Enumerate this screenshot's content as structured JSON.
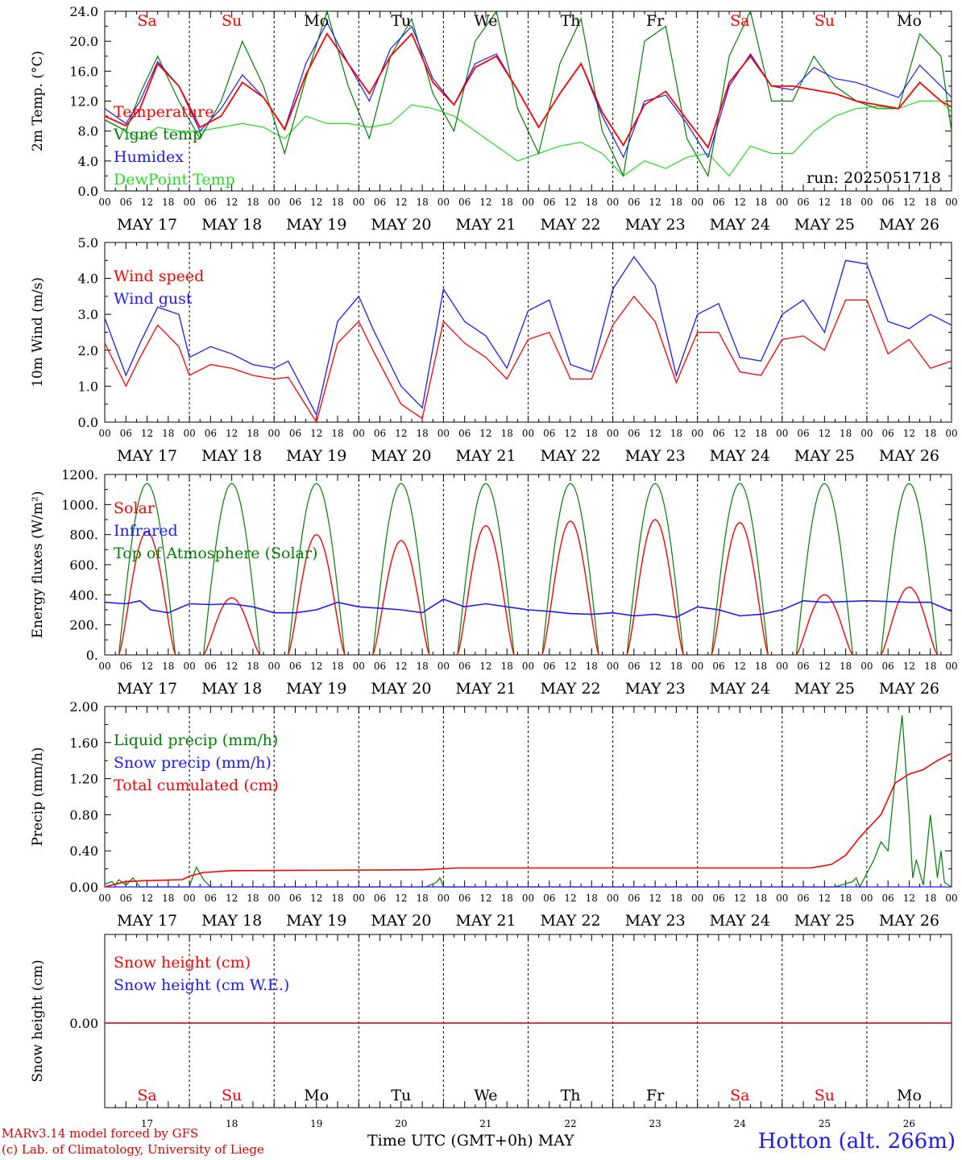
{
  "footer": {
    "credit_line1": "MARv3.14 model forced by GFS",
    "credit_line2": "(c) Lab. of Climatology, University of Liege",
    "station": "Hotton (alt. 266m)",
    "x_title": "Time UTC (GMT+0h)",
    "x_month": "MAY"
  },
  "colors": {
    "red": "#ff0000",
    "green": "#008000",
    "blue": "#1a1aff",
    "light_green": "#22dd22",
    "black": "#000000"
  },
  "chart_data": [
    {
      "type": "line",
      "ylabel": "2m Temp. (°C)",
      "ylim": [
        0,
        24
      ],
      "yticks": [
        "0.0",
        "4.0",
        "8.0",
        "12.0",
        "16.0",
        "20.0",
        "24.0"
      ],
      "xlim_hours": [
        0,
        240
      ],
      "annotation": "run: 2025051718",
      "day_names": [
        "Sa",
        "Su",
        "Mo",
        "Tu",
        "We",
        "Th",
        "Fr",
        "Sa",
        "Su",
        "Mo"
      ],
      "x": [
        0,
        6,
        10,
        15,
        21,
        27,
        33,
        39,
        45,
        51,
        57,
        63,
        69,
        75,
        81,
        87,
        93,
        99,
        105,
        111,
        117,
        123,
        129,
        135,
        141,
        147,
        153,
        159,
        165,
        171,
        177,
        183,
        189,
        195,
        201,
        207,
        213,
        219,
        225,
        231,
        237,
        240
      ],
      "series": [
        {
          "name": "Temperature",
          "color": "red",
          "values": [
            10,
            8.7,
            11,
            17,
            14,
            8.5,
            10,
            14.5,
            12.5,
            8.2,
            15.5,
            21,
            17,
            13,
            18,
            21,
            14.5,
            11.5,
            16.5,
            18,
            13.5,
            8.5,
            13,
            17,
            10.5,
            6.1,
            11.5,
            13.3,
            9.5,
            5.8,
            14.5,
            18,
            14,
            14,
            13.5,
            13,
            12,
            11.5,
            11,
            14.5,
            12,
            11.2
          ]
        },
        {
          "name": "Vigne temp",
          "color": "green",
          "values": [
            9.5,
            8,
            13,
            18,
            12,
            7,
            12,
            20,
            14,
            5,
            15,
            24,
            14,
            7,
            18,
            23,
            13,
            8,
            20,
            24,
            11,
            5,
            17,
            23,
            8,
            2,
            20,
            22,
            7,
            2,
            18,
            24,
            12,
            12,
            18,
            14,
            12,
            11,
            11,
            21,
            18,
            8
          ]
        },
        {
          "name": "Humidex",
          "color": "blue",
          "values": [
            11,
            9,
            12,
            17.3,
            14,
            8,
            11,
            15.5,
            12.5,
            8.3,
            17,
            22.5,
            17,
            12,
            19,
            22,
            15,
            11.5,
            17,
            18.3,
            13.5,
            8.5,
            13,
            17,
            10,
            4.5,
            12,
            12.8,
            9,
            4.5,
            14,
            18.3,
            14,
            13.5,
            16.5,
            15,
            14.5,
            13.5,
            12.5,
            16.8,
            14,
            12.5
          ]
        },
        {
          "name": "DewPoint Temp",
          "color": "light_green",
          "values": [
            9.5,
            8,
            7,
            8.5,
            8,
            8,
            8.5,
            9,
            8.5,
            7,
            10,
            9,
            9,
            8.5,
            9,
            11.5,
            11,
            10,
            8,
            6,
            4,
            5,
            6,
            6.5,
            5,
            2,
            4,
            3,
            4.5,
            5,
            2,
            6,
            5,
            5,
            8,
            10,
            11,
            11.3,
            11,
            12,
            12,
            10.5
          ]
        }
      ]
    },
    {
      "type": "line",
      "ylabel": "10m Wind (m/s)",
      "ylim": [
        0,
        5
      ],
      "yticks": [
        "0.0",
        "1.0",
        "2.0",
        "3.0",
        "4.0",
        "5.0"
      ],
      "xlim_hours": [
        0,
        240
      ],
      "x": [
        0,
        6,
        10,
        15,
        21,
        24,
        30,
        36,
        42,
        48,
        52,
        60,
        66,
        72,
        76,
        84,
        90,
        96,
        102,
        108,
        114,
        120,
        126,
        132,
        138,
        144,
        150,
        156,
        162,
        168,
        174,
        180,
        186,
        192,
        198,
        204,
        210,
        216,
        222,
        228,
        234,
        240
      ],
      "series": [
        {
          "name": "Wind speed",
          "color": "red",
          "values": [
            2.2,
            1.0,
            1.8,
            2.7,
            2.1,
            1.3,
            1.6,
            1.5,
            1.3,
            1.2,
            1.25,
            0.0,
            2.2,
            2.8,
            2.0,
            0.5,
            0.1,
            2.8,
            2.2,
            1.8,
            1.2,
            2.3,
            2.5,
            1.2,
            1.2,
            2.7,
            3.5,
            2.8,
            1.1,
            2.5,
            2.5,
            1.4,
            1.3,
            2.3,
            2.4,
            2.0,
            3.4,
            3.4,
            1.9,
            2.3,
            1.5,
            1.7
          ]
        },
        {
          "name": "Wind gust",
          "color": "blue",
          "values": [
            2.9,
            1.3,
            2.2,
            3.2,
            3.0,
            1.8,
            2.1,
            1.9,
            1.6,
            1.5,
            1.7,
            0.2,
            2.8,
            3.5,
            2.6,
            1.0,
            0.4,
            3.7,
            2.8,
            2.4,
            1.5,
            3.1,
            3.4,
            1.6,
            1.4,
            3.7,
            4.6,
            3.8,
            1.3,
            3.0,
            3.3,
            1.8,
            1.7,
            3.0,
            3.4,
            2.5,
            4.5,
            4.4,
            2.8,
            2.6,
            3.0,
            2.7
          ]
        }
      ]
    },
    {
      "type": "line",
      "ylabel": "Energy fluxes (W/m²)",
      "ylim": [
        0,
        1200
      ],
      "yticks": [
        "0.",
        "200.",
        "400.",
        "600.",
        "800.",
        "1000.",
        "1200."
      ],
      "xlim_hours": [
        0,
        240
      ],
      "series": [
        {
          "name": "Solar",
          "color": "red",
          "peaks": [
            820,
            380,
            800,
            760,
            860,
            890,
            900,
            880,
            400,
            450
          ]
        },
        {
          "name": "Infrared",
          "color": "blue",
          "x": [
            0,
            6,
            10,
            13,
            18,
            24,
            30,
            36,
            42,
            48,
            54,
            60,
            66,
            72,
            78,
            84,
            90,
            96,
            102,
            108,
            114,
            120,
            126,
            132,
            138,
            144,
            150,
            156,
            162,
            168,
            174,
            180,
            186,
            192,
            198,
            204,
            210,
            216,
            222,
            228,
            234,
            240
          ],
          "values": [
            350,
            340,
            360,
            300,
            280,
            340,
            335,
            340,
            320,
            280,
            280,
            300,
            350,
            320,
            310,
            300,
            280,
            370,
            320,
            340,
            320,
            300,
            290,
            275,
            270,
            280,
            260,
            270,
            250,
            320,
            300,
            260,
            270,
            300,
            360,
            350,
            355,
            360,
            355,
            350,
            350,
            290
          ]
        },
        {
          "name": "Top of Atmosphere (Solar)",
          "color": "green",
          "peak": 1140
        }
      ]
    },
    {
      "type": "line",
      "ylabel": "Precip (mm/h)",
      "ylim": [
        0,
        2
      ],
      "yticks": [
        "0.00",
        "0.40",
        "0.80",
        "1.20",
        "1.60",
        "2.00"
      ],
      "xlim_hours": [
        0,
        240
      ],
      "series": [
        {
          "name": "Liquid precip (mm/h)",
          "color": "green",
          "x": [
            0,
            2,
            3,
            4,
            6,
            8,
            10,
            24,
            25,
            26,
            27,
            28,
            30,
            70,
            91,
            94,
            95,
            96,
            126,
            150,
            207,
            212,
            213,
            214,
            218,
            220,
            222,
            224,
            226,
            228,
            229,
            230,
            232,
            234,
            236,
            237,
            238,
            240
          ],
          "values": [
            0.03,
            0.06,
            0.02,
            0.08,
            0.02,
            0.1,
            0.0,
            0.0,
            0.12,
            0.22,
            0.15,
            0.08,
            0.0,
            0.0,
            0.0,
            0.05,
            0.1,
            0.0,
            0.0,
            0.0,
            0.0,
            0.06,
            0.1,
            0.0,
            0.3,
            0.5,
            0.4,
            1.2,
            1.9,
            0.8,
            0.1,
            0.3,
            0.02,
            0.8,
            0.1,
            0.4,
            0.05,
            0.0
          ]
        },
        {
          "name": "Snow precip (mm/h)",
          "color": "blue",
          "x": [
            0,
            240
          ],
          "values": [
            0,
            0
          ]
        },
        {
          "name": "Total cumulated (cm)",
          "color": "red",
          "x": [
            0,
            6,
            12,
            22,
            24,
            28,
            36,
            90,
            100,
            130,
            200,
            206,
            210,
            214,
            220,
            224,
            228,
            232,
            236,
            240
          ],
          "values": [
            0.0,
            0.06,
            0.07,
            0.08,
            0.12,
            0.16,
            0.18,
            0.19,
            0.21,
            0.21,
            0.21,
            0.25,
            0.35,
            0.55,
            0.8,
            1.15,
            1.25,
            1.3,
            1.4,
            1.48
          ]
        }
      ]
    },
    {
      "type": "line",
      "ylabel": "Snow height (cm)",
      "ytick": "0.00",
      "xlim_hours": [
        0,
        240
      ],
      "day_names": [
        "Sa",
        "Su",
        "Mo",
        "Tu",
        "We",
        "Th",
        "Fr",
        "Sa",
        "Su",
        "Mo"
      ],
      "day_numbers": [
        "17",
        "18",
        "19",
        "20",
        "21",
        "22",
        "23",
        "24",
        "25",
        "26"
      ],
      "series": [
        {
          "name": "Snow height (cm)",
          "color": "red",
          "values": [
            0,
            0
          ]
        },
        {
          "name": "Snow height (cm W.E.)",
          "color": "blue",
          "values": [
            0,
            0
          ]
        }
      ]
    }
  ],
  "x_axis": {
    "hour_labels": [
      "00",
      "06",
      "12",
      "18"
    ],
    "end_label": "00",
    "day_labels": [
      "MAY 17",
      "MAY 18",
      "MAY 19",
      "MAY 20",
      "MAY 21",
      "MAY 22",
      "MAY 23",
      "MAY 24",
      "MAY 25",
      "MAY 26"
    ]
  }
}
